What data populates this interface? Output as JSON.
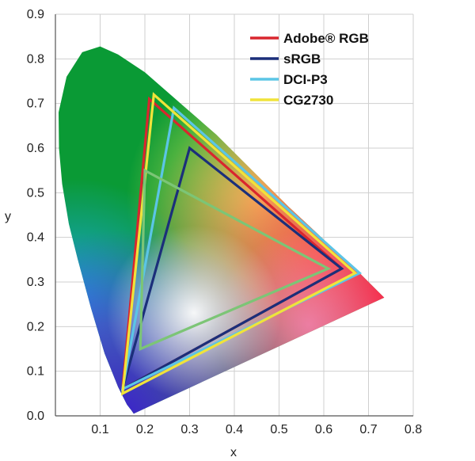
{
  "chart_data": {
    "type": "scatter",
    "title": "",
    "xlabel": "x",
    "ylabel": "y",
    "xlim": [
      0,
      0.8
    ],
    "ylim": [
      0,
      0.9
    ],
    "x_ticks": [
      "0.1",
      "0.2",
      "0.3",
      "0.4",
      "0.5",
      "0.6",
      "0.7",
      "0.8"
    ],
    "y_ticks": [
      "0.0",
      "0.1",
      "0.2",
      "0.3",
      "0.4",
      "0.5",
      "0.6",
      "0.7",
      "0.8",
      "0.9"
    ],
    "grid": true,
    "legend_position": "top-right",
    "spectral_locus": [
      [
        0.175,
        0.005
      ],
      [
        0.17,
        0.012
      ],
      [
        0.16,
        0.025
      ],
      [
        0.14,
        0.065
      ],
      [
        0.11,
        0.14
      ],
      [
        0.08,
        0.24
      ],
      [
        0.05,
        0.35
      ],
      [
        0.03,
        0.43
      ],
      [
        0.015,
        0.52
      ],
      [
        0.008,
        0.6
      ],
      [
        0.007,
        0.68
      ],
      [
        0.025,
        0.76
      ],
      [
        0.06,
        0.815
      ],
      [
        0.1,
        0.828
      ],
      [
        0.14,
        0.81
      ],
      [
        0.2,
        0.77
      ],
      [
        0.28,
        0.7
      ],
      [
        0.36,
        0.63
      ],
      [
        0.44,
        0.55
      ],
      [
        0.52,
        0.47
      ],
      [
        0.6,
        0.395
      ],
      [
        0.67,
        0.33
      ],
      [
        0.735,
        0.265
      ]
    ],
    "series": [
      {
        "name": "Adobe® RGB",
        "color": "#d9262e",
        "points": [
          [
            0.64,
            0.33
          ],
          [
            0.21,
            0.71
          ],
          [
            0.15,
            0.06
          ]
        ]
      },
      {
        "name": "sRGB",
        "color": "#1b2f7a",
        "points": [
          [
            0.64,
            0.33
          ],
          [
            0.3,
            0.6
          ],
          [
            0.15,
            0.06
          ]
        ]
      },
      {
        "name": "DCI-P3",
        "color": "#5bc5e6",
        "points": [
          [
            0.68,
            0.32
          ],
          [
            0.265,
            0.69
          ],
          [
            0.15,
            0.06
          ]
        ]
      },
      {
        "name": "CG2730",
        "color": "#f0e33a",
        "points": [
          [
            0.67,
            0.32
          ],
          [
            0.22,
            0.72
          ],
          [
            0.15,
            0.05
          ]
        ]
      },
      {
        "name": "",
        "color": "#7cc576",
        "points": [
          [
            0.61,
            0.33
          ],
          [
            0.2,
            0.55
          ],
          [
            0.19,
            0.15
          ]
        ]
      }
    ]
  }
}
